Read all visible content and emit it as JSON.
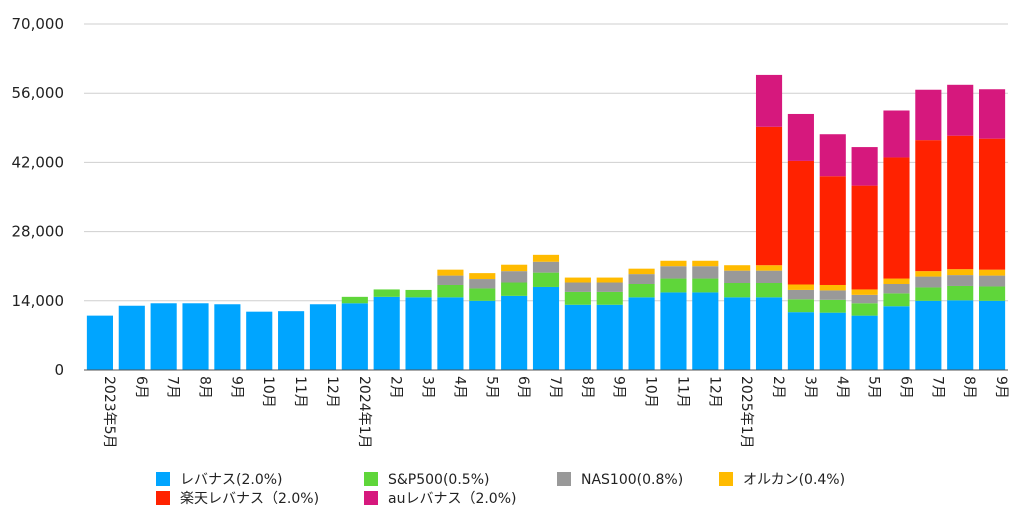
{
  "chart_data": {
    "type": "bar",
    "stacked": true,
    "title": "",
    "xlabel": "",
    "ylabel": "",
    "ylim": [
      0,
      70000
    ],
    "yticks": [
      0,
      14000,
      28000,
      42000,
      56000,
      70000
    ],
    "ytick_labels": [
      "0",
      "14,000",
      "28,000",
      "42,000",
      "56,000",
      "70,000"
    ],
    "grid": true,
    "legend_position": "bottom",
    "categories": [
      "2023年5月",
      "6月",
      "7月",
      "8月",
      "9月",
      "10月",
      "11月",
      "12月",
      "2024年1月",
      "2月",
      "3月",
      "4月",
      "5月",
      "6月",
      "7月",
      "8月",
      "9月",
      "10月",
      "11月",
      "12月",
      "2025年1月",
      "2月",
      "3月",
      "4月",
      "5月",
      "6月",
      "7月",
      "8月",
      "9月"
    ],
    "series": [
      {
        "name": "レバナス(2.0%)",
        "color": "#00a5ff",
        "values": [
          11000,
          13000,
          13500,
          13500,
          13300,
          11800,
          11900,
          13300,
          13500,
          14800,
          14700,
          14700,
          14000,
          15000,
          16800,
          13200,
          13200,
          14700,
          15700,
          15700,
          14700,
          14700,
          11700,
          11600,
          11000,
          12900,
          14000,
          14100,
          14000
        ]
      },
      {
        "name": "S&P500(0.5%)",
        "color": "#5fd63a",
        "values": [
          0,
          0,
          0,
          0,
          0,
          0,
          0,
          0,
          1300,
          1500,
          1500,
          2500,
          2500,
          2700,
          2900,
          2600,
          2600,
          2700,
          2800,
          2800,
          2900,
          2900,
          2600,
          2600,
          2500,
          2600,
          2700,
          2900,
          2900
        ]
      },
      {
        "name": "NAS100(0.8%)",
        "color": "#999999",
        "values": [
          0,
          0,
          0,
          0,
          0,
          0,
          0,
          0,
          0,
          0,
          0,
          1900,
          1900,
          2300,
          2200,
          1900,
          1900,
          2000,
          2500,
          2500,
          2500,
          2500,
          1900,
          1900,
          1700,
          1900,
          2200,
          2200,
          2200
        ]
      },
      {
        "name": "オルカン(0.4%)",
        "color": "#ffbb00",
        "values": [
          0,
          0,
          0,
          0,
          0,
          0,
          0,
          0,
          0,
          0,
          0,
          1200,
          1200,
          1300,
          1400,
          1000,
          1000,
          1100,
          1100,
          1100,
          1100,
          1100,
          1100,
          1100,
          1100,
          1100,
          1100,
          1200,
          1200
        ]
      },
      {
        "name": "楽天レバナス（2.0%)",
        "color": "#ff2200",
        "values": [
          0,
          0,
          0,
          0,
          0,
          0,
          0,
          0,
          0,
          0,
          0,
          0,
          0,
          0,
          0,
          0,
          0,
          0,
          0,
          0,
          0,
          28000,
          25000,
          22000,
          21000,
          24500,
          26500,
          27000,
          26500
        ]
      },
      {
        "name": "auレバナス（2.0%)",
        "color": "#d6187d",
        "values": [
          0,
          0,
          0,
          0,
          0,
          0,
          0,
          0,
          0,
          0,
          0,
          0,
          0,
          0,
          0,
          0,
          0,
          0,
          0,
          0,
          0,
          10500,
          9500,
          8500,
          7800,
          9500,
          10200,
          10300,
          10000
        ]
      }
    ]
  }
}
